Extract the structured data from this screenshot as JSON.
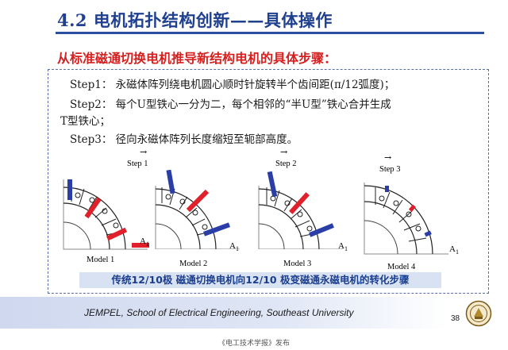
{
  "slide": {
    "title": "4.2 电机拓扑结构创新——具体操作",
    "subtitle": "从标准磁通切换电机推导新结构电机的具体步骤：",
    "steps": [
      "Step1：  永磁体阵列绕电机圆心顺时针旋转半个齿间距(π/12弧度)；",
      "Step2：  每个U型铁心一分为二，每个相邻的“半U型”铁心合并生成",
      "T型铁心；",
      "Step3：  径向永磁体阵列长度缩短至轭部高度。"
    ],
    "figure": {
      "step_labels": [
        "Step 1",
        "Step 2",
        "Step 3"
      ],
      "models": [
        "Model 1",
        "Model 2",
        "Model 3",
        "Model 4"
      ],
      "a1_label": "A",
      "a1_sub": "1",
      "arrow": "→"
    },
    "caption": "传统12/10极  磁通切换电机向12/10  极变磁通永磁电机的转化步骤",
    "footer": "JEMPEL, School of Electrical Engineering, Southeast University",
    "page_number": "38",
    "source": "《电工技术学报》发布"
  },
  "colors": {
    "title": "#1f3f8f",
    "subtitle": "#d62020",
    "magnet_blue": "#2b3ea8",
    "magnet_red": "#e0202a",
    "caption_bg": "#d8e2f2"
  },
  "icons": {
    "logo": "university-seal-icon"
  }
}
